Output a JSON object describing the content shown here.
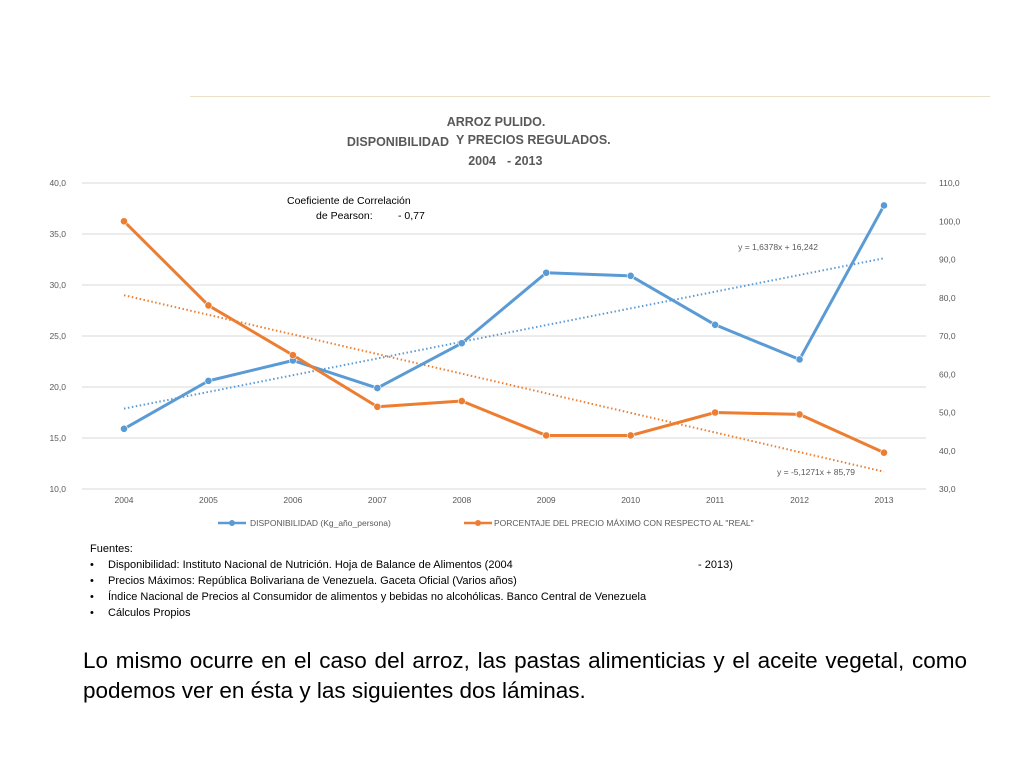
{
  "chart_data": {
    "type": "line",
    "title_lines": [
      "ARROZ PULIDO.",
      "DISPONIBILIDAD",
      "Y PRECIOS REGULADOS.",
      "2004",
      "- 2013"
    ],
    "categories": [
      "2004",
      "2005",
      "2006",
      "2007",
      "2008",
      "2009",
      "2010",
      "2011",
      "2012",
      "2013"
    ],
    "y_left": {
      "min": 10,
      "max": 40,
      "ticks": [
        "10,0",
        "15,0",
        "20,0",
        "25,0",
        "30,0",
        "35,0",
        "40,0"
      ]
    },
    "y_right": {
      "min": 30,
      "max": 110,
      "ticks": [
        "30,0",
        "40,0",
        "50,0",
        "60,0",
        "70,0",
        "80,0",
        "90,0",
        "100,0",
        "110,0"
      ]
    },
    "series": [
      {
        "name": "DISPONIBILIDAD (Kg_año_persona)",
        "axis": "left",
        "color": "#5b9bd5",
        "values": [
          15.9,
          20.6,
          22.6,
          19.9,
          24.3,
          31.2,
          30.9,
          26.1,
          22.7,
          37.8
        ],
        "trend_label": "y = 1,6378x + 16,242",
        "trend": {
          "slope": 1.6378,
          "intercept": 16.242
        }
      },
      {
        "name": "PORCENTAJE DEL PRECIO MÁXIMO CON RESPECTO AL \"REAL\"",
        "axis": "right",
        "color": "#ed7d31",
        "values": [
          100.0,
          78.0,
          65.0,
          51.5,
          53.0,
          44.0,
          44.0,
          50.0,
          49.5,
          39.5
        ],
        "trend_label": "y =  -5,1271x + 85,79",
        "trend": {
          "slope": -5.1271,
          "intercept": 85.79
        }
      }
    ],
    "annotation": {
      "line1": "Coeficiente de Correlación",
      "line2_label": "de Pearson:",
      "line2_value": "- 0,77"
    }
  },
  "sources": {
    "heading": "Fuentes:",
    "bullet": "•",
    "items": [
      {
        "text": "Disponibilidad: Instituto Nacional de Nutrición. Hoja de Balance de Alimentos (2004",
        "tail": "- 2013)"
      },
      {
        "text": "Precios Máximos: República Bolivariana de Venezuela. Gaceta Oficial (Varios años)",
        "tail": ""
      },
      {
        "text": "Índice Nacional de Precios al Consumidor de alimentos y bebidas no alcohólicas. Banco Central de Venezuela",
        "tail": ""
      },
      {
        "text": "Cálculos Propios",
        "tail": ""
      }
    ]
  },
  "caption": "Lo mismo ocurre en el caso del arroz, las pastas alimenticias y el aceite vegetal, como podemos ver en ésta y las siguientes dos láminas."
}
